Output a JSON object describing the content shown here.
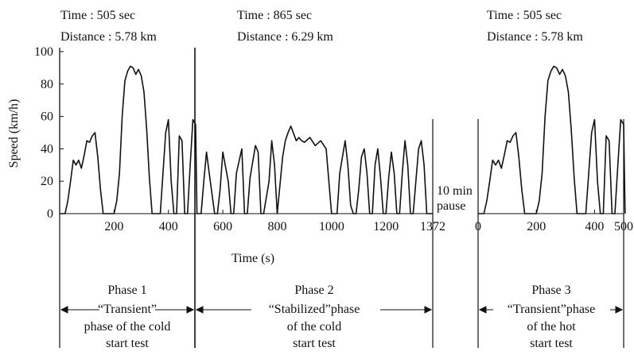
{
  "header": {
    "p1_time": "Time : 505 sec",
    "p1_distance": "Distance : 5.78 km",
    "p2_time": "Time : 865 sec",
    "p2_distance": "Distance : 6.29 km",
    "p3_time": "Time : 505 sec",
    "p3_distance": "Distance : 5.78 km"
  },
  "phases": {
    "p1": [
      "Phase 1",
      "“Transient”",
      "phase of the cold",
      "start test"
    ],
    "p2": [
      "Phase 2",
      "“Stabilized”phase",
      "of the cold",
      "start test"
    ],
    "p3": [
      "Phase 3",
      "“Transient”phase",
      "of the hot",
      "start test"
    ]
  },
  "pause_label": [
    "10 min",
    "pause"
  ],
  "chart_data": {
    "type": "line",
    "xlabel": "Time (s)",
    "ylabel": "Speed (km/h)",
    "ylim": [
      0,
      100
    ],
    "yticks": [
      0,
      20,
      40,
      60,
      80,
      100
    ],
    "xticks_left": [
      200,
      400,
      600,
      800,
      1000,
      1200,
      1372
    ],
    "xticks_left_labels": [
      "200",
      "400",
      "600",
      "800",
      "1000",
      "1200",
      "1372"
    ],
    "xticks_right": [
      0,
      200,
      400,
      500
    ],
    "xticks_right_labels": [
      "0",
      "200",
      "400",
      "500"
    ],
    "series": [
      {
        "segment": "cold start (phases 1 and 2)",
        "x": [
          0,
          20,
          30,
          40,
          50,
          60,
          70,
          80,
          90,
          100,
          110,
          120,
          130,
          140,
          150,
          160,
          170,
          180,
          200,
          210,
          220,
          230,
          240,
          250,
          260,
          270,
          280,
          290,
          300,
          310,
          320,
          330,
          340,
          350,
          360,
          370,
          380,
          390,
          400,
          410,
          420,
          430,
          440,
          450,
          460,
          470,
          480,
          490,
          500,
          505,
          520,
          530,
          540,
          550,
          570,
          580,
          590,
          600,
          620,
          630,
          640,
          650,
          670,
          680,
          690,
          700,
          720,
          730,
          740,
          750,
          770,
          780,
          790,
          800,
          820,
          830,
          840,
          850,
          870,
          880,
          890,
          900,
          920,
          940,
          960,
          980,
          990,
          1000,
          1010,
          1020,
          1030,
          1040,
          1050,
          1060,
          1070,
          1080,
          1090,
          1100,
          1110,
          1120,
          1130,
          1140,
          1150,
          1160,
          1170,
          1180,
          1190,
          1200,
          1210,
          1220,
          1230,
          1240,
          1250,
          1260,
          1270,
          1280,
          1290,
          1300,
          1310,
          1320,
          1330,
          1340,
          1350,
          1360,
          1372
        ],
        "y": [
          0,
          0,
          8,
          20,
          33,
          30,
          33,
          28,
          36,
          45,
          44,
          48,
          50,
          35,
          15,
          0,
          0,
          0,
          0,
          8,
          25,
          60,
          82,
          88,
          91,
          90,
          86,
          89,
          85,
          75,
          52,
          22,
          0,
          0,
          0,
          0,
          25,
          50,
          58,
          20,
          0,
          0,
          48,
          45,
          0,
          0,
          30,
          58,
          55,
          0,
          0,
          20,
          38,
          25,
          0,
          0,
          15,
          38,
          20,
          0,
          0,
          25,
          40,
          0,
          0,
          22,
          42,
          38,
          0,
          0,
          20,
          45,
          30,
          0,
          35,
          45,
          50,
          54,
          45,
          47,
          45,
          44,
          47,
          42,
          45,
          40,
          20,
          0,
          0,
          0,
          25,
          35,
          45,
          30,
          5,
          0,
          0,
          15,
          35,
          40,
          25,
          0,
          0,
          30,
          40,
          22,
          0,
          0,
          22,
          38,
          25,
          0,
          0,
          25,
          45,
          30,
          0,
          0,
          20,
          40,
          45,
          30,
          0,
          0,
          0
        ]
      },
      {
        "segment": "hot start (phase 3)",
        "x": [
          0,
          20,
          30,
          40,
          50,
          60,
          70,
          80,
          90,
          100,
          110,
          120,
          130,
          140,
          150,
          160,
          170,
          180,
          200,
          210,
          220,
          230,
          240,
          250,
          260,
          270,
          280,
          290,
          300,
          310,
          320,
          330,
          340,
          350,
          360,
          370,
          380,
          390,
          400,
          410,
          420,
          430,
          440,
          450,
          460,
          470,
          480,
          490,
          500,
          505
        ],
        "y": [
          0,
          0,
          8,
          20,
          33,
          30,
          33,
          28,
          36,
          45,
          44,
          48,
          50,
          35,
          15,
          0,
          0,
          0,
          0,
          8,
          25,
          60,
          82,
          88,
          91,
          90,
          86,
          89,
          85,
          75,
          52,
          22,
          0,
          0,
          0,
          0,
          25,
          50,
          58,
          20,
          0,
          0,
          48,
          45,
          0,
          0,
          30,
          58,
          55,
          0
        ]
      }
    ]
  }
}
